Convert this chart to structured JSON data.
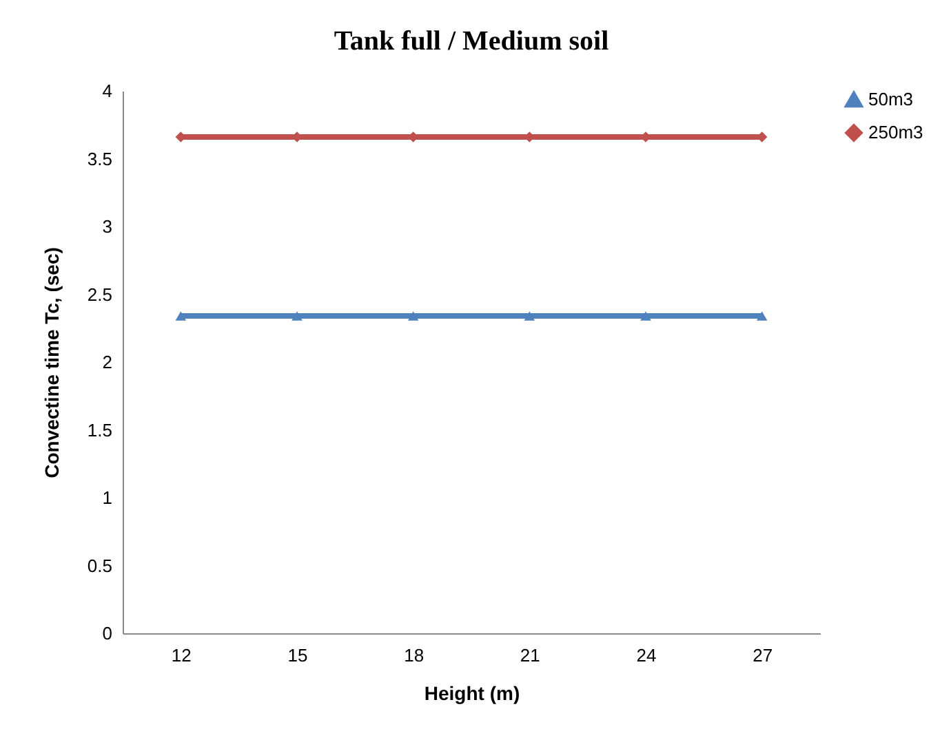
{
  "chart_data": {
    "type": "line",
    "title": "Tank full / Medium soil",
    "xlabel": "Height (m)",
    "ylabel": "Convectine time  Tc, (sec)",
    "categories": [
      "12",
      "15",
      "18",
      "21",
      "24",
      "27"
    ],
    "series": [
      {
        "name": "50m3",
        "color": "#4f81bd",
        "marker": "triangle",
        "values": [
          2.34,
          2.34,
          2.34,
          2.34,
          2.34,
          2.34
        ]
      },
      {
        "name": "250m3",
        "color": "#c0504d",
        "marker": "diamond",
        "values": [
          3.66,
          3.66,
          3.66,
          3.66,
          3.66,
          3.66
        ]
      }
    ],
    "ylim": [
      0,
      4
    ],
    "yticks": [
      0,
      0.5,
      1,
      1.5,
      2,
      2.5,
      3,
      3.5,
      4
    ],
    "grid": false,
    "legend": "right"
  }
}
